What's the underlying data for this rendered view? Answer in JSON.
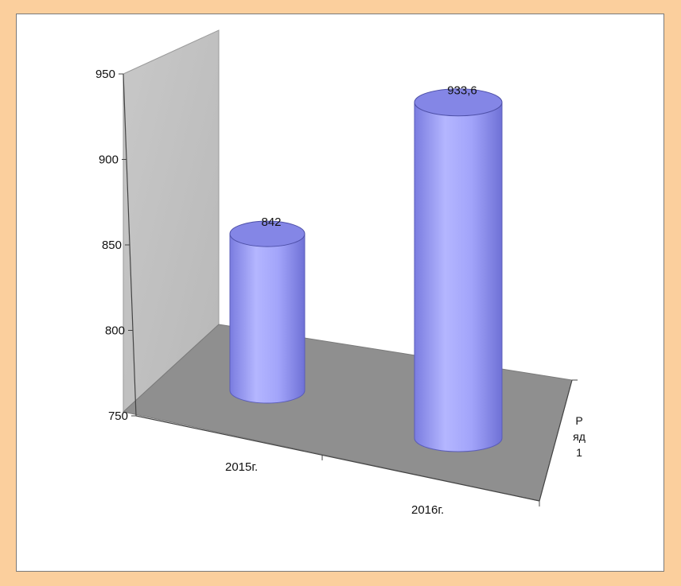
{
  "chart_data": {
    "type": "bar",
    "style": "3d-cylinder",
    "categories": [
      "2015г.",
      "2016г."
    ],
    "series": [
      {
        "name": "Ряд 1",
        "values": [
          842,
          933.6
        ]
      }
    ],
    "data_labels": [
      "842",
      "933,6"
    ],
    "y_ticks": [
      "750",
      "800",
      "850",
      "900",
      "950"
    ],
    "ylim": [
      750,
      950
    ],
    "grid": true,
    "legend": "none",
    "depth_axis_label_lines": [
      "Р",
      "яд",
      "1"
    ]
  },
  "colors": {
    "outer_background": "#fbcf9d",
    "panel": "#ffffff",
    "wall": "#c0c0c0",
    "floor": "#8f8f8f",
    "cylinder": "#9a9cf4",
    "cylinder_top": "#8486e6"
  }
}
